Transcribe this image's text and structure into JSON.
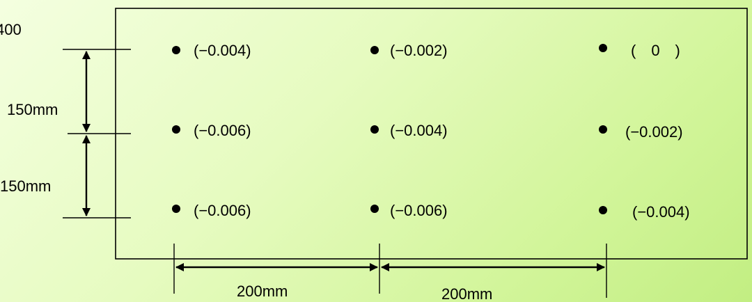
{
  "corner_label": "400",
  "dimensions": {
    "vertical_top": "150mm",
    "vertical_bottom": "150mm",
    "horizontal_left": "200mm",
    "horizontal_right": "200mm"
  },
  "points": [
    [
      "(−0.004)",
      "(−0.002)",
      "(　0　)"
    ],
    [
      "(−0.006)",
      "(−0.004)",
      "(−0.002)"
    ],
    [
      "(−0.006)",
      "(−0.006)",
      "(−0.004)"
    ]
  ]
}
